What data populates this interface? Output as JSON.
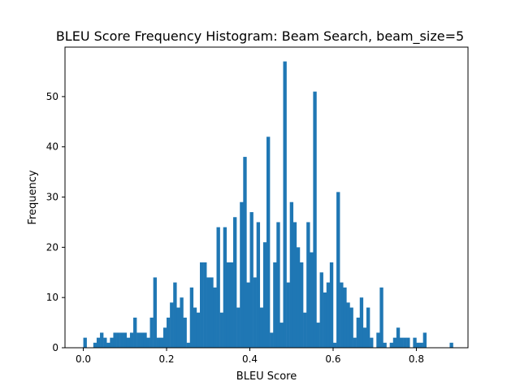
{
  "chart_data": {
    "type": "bar",
    "title": "BLEU Score Frequency Histogram: Beam Search, beam_size=5",
    "xlabel": "BLEU Score",
    "ylabel": "Frequency",
    "xlim": [
      -0.044,
      0.924
    ],
    "ylim": [
      0,
      59.85
    ],
    "x_ticks": [
      0.0,
      0.2,
      0.4,
      0.6,
      0.8
    ],
    "x_tick_labels": [
      "0.0",
      "0.2",
      "0.4",
      "0.6",
      "0.8"
    ],
    "y_ticks": [
      0,
      10,
      20,
      30,
      40,
      50
    ],
    "y_tick_labels": [
      "0",
      "10",
      "20",
      "30",
      "40",
      "50"
    ],
    "bin_start": 0.0,
    "bin_width": 0.008,
    "counts": [
      2,
      0,
      0,
      1,
      2,
      3,
      2,
      1,
      2,
      3,
      3,
      3,
      3,
      2,
      3,
      6,
      3,
      3,
      3,
      2,
      6,
      14,
      2,
      2,
      4,
      6,
      9,
      13,
      8,
      10,
      6,
      1,
      12,
      8,
      7,
      17,
      17,
      14,
      14,
      12,
      24,
      7,
      24,
      17,
      17,
      26,
      8,
      29,
      38,
      13,
      27,
      14,
      25,
      8,
      21,
      42,
      3,
      17,
      25,
      5,
      57,
      13,
      29,
      25,
      20,
      17,
      7,
      25,
      19,
      51,
      5,
      15,
      11,
      13,
      17,
      1,
      31,
      13,
      12,
      9,
      8,
      2,
      6,
      10,
      4,
      8,
      2,
      0,
      3,
      12,
      1,
      0,
      1,
      2,
      4,
      2,
      2,
      2,
      0,
      2,
      1,
      1,
      3,
      0,
      0,
      0,
      0,
      0,
      0,
      0,
      1
    ],
    "grid": false,
    "legend": false,
    "colors": {
      "bar": "#1f77b4",
      "axes": "#000000",
      "background": "#ffffff"
    }
  }
}
